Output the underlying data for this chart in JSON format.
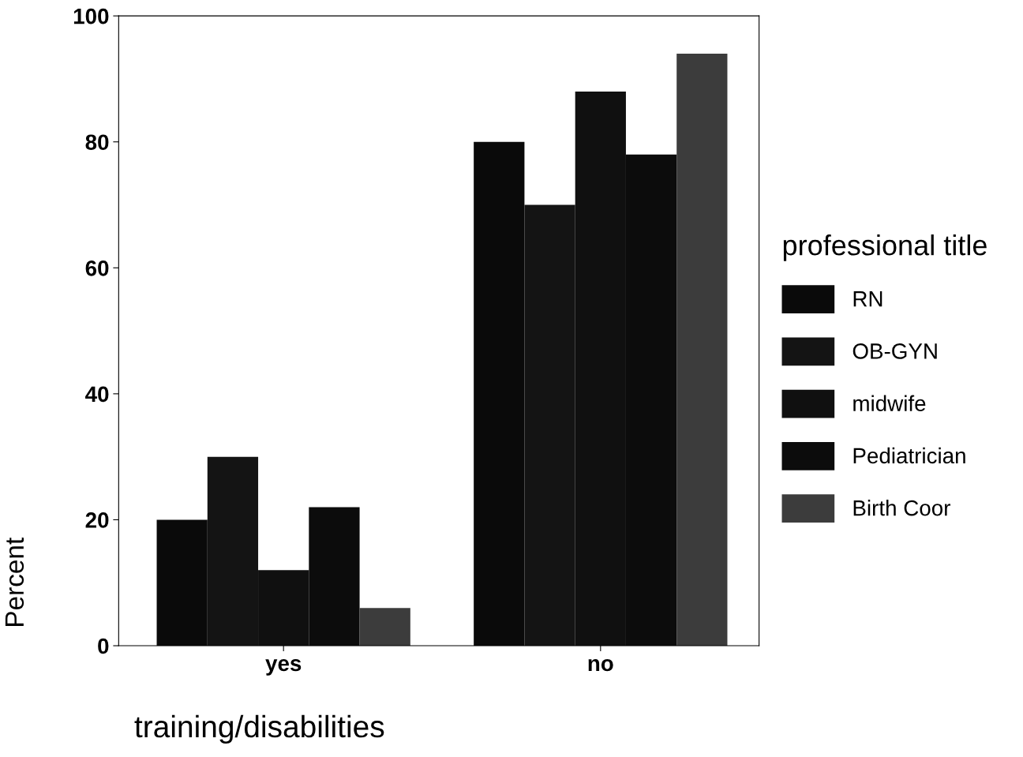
{
  "chart_data": {
    "type": "bar",
    "xlabel": "training/disabilities",
    "ylabel": "Percent",
    "legend_title": "professional title",
    "categories": [
      "yes",
      "no"
    ],
    "series": [
      {
        "name": "RN",
        "color": "#0a0a0a",
        "values": [
          20,
          80
        ]
      },
      {
        "name": "OB-GYN",
        "color": "#141414",
        "values": [
          30,
          70
        ]
      },
      {
        "name": "midwife",
        "color": "#101010",
        "values": [
          12,
          88
        ]
      },
      {
        "name": "Pediatrician",
        "color": "#0c0c0c",
        "values": [
          22,
          78
        ]
      },
      {
        "name": "Birth Coor",
        "color": "#3c3c3c",
        "values": [
          6,
          94
        ]
      }
    ],
    "ylim": [
      0,
      100
    ],
    "yticks": [
      0,
      20,
      40,
      60,
      80,
      100
    ],
    "grid": false,
    "legend": "right"
  }
}
